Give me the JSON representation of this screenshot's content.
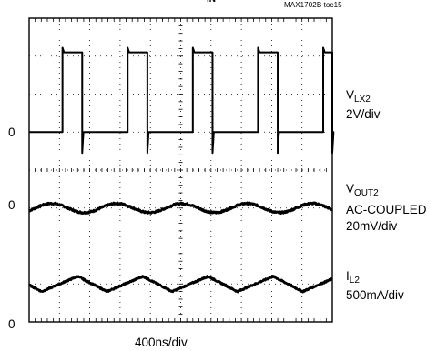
{
  "header": {
    "doc_id": "MAX1702B toc15",
    "cut_label": "IN"
  },
  "chart_data": {
    "type": "line",
    "xlabel": "400ns/div",
    "x_divisions": 10,
    "y_divisions": 8,
    "time_per_div_ns": 400,
    "grid": true,
    "ground_markers": [
      "0",
      "0",
      "0"
    ],
    "channels": [
      {
        "id": "vlx2",
        "name_main": "V",
        "name_sub": "LX2",
        "scale": "2V/div",
        "extra": "",
        "ground_div": 5.0,
        "waveform": "switching",
        "pulse_period_div": 2.15,
        "pulse_high_div": 0.65,
        "first_rise_div": 1.1,
        "high_level_div": 2.1,
        "low_level_div": 0.0
      },
      {
        "id": "vout2",
        "name_main": "V",
        "name_sub": "OUT2",
        "scale": "20mV/div",
        "extra": "AC-COUPLED",
        "ground_div": 3.0,
        "waveform": "ripple",
        "ripple_period_div": 2.15,
        "ripple_amp_div": 0.12
      },
      {
        "id": "il2",
        "name_main": "I",
        "name_sub": "L2",
        "scale": "500mA/div",
        "extra": "",
        "ground_div": 0.0,
        "waveform": "triangle",
        "tri_period_div": 2.15,
        "tri_peak_time_div": 1.6,
        "tri_min_div": 0.8,
        "tri_max_div": 1.2
      }
    ]
  }
}
